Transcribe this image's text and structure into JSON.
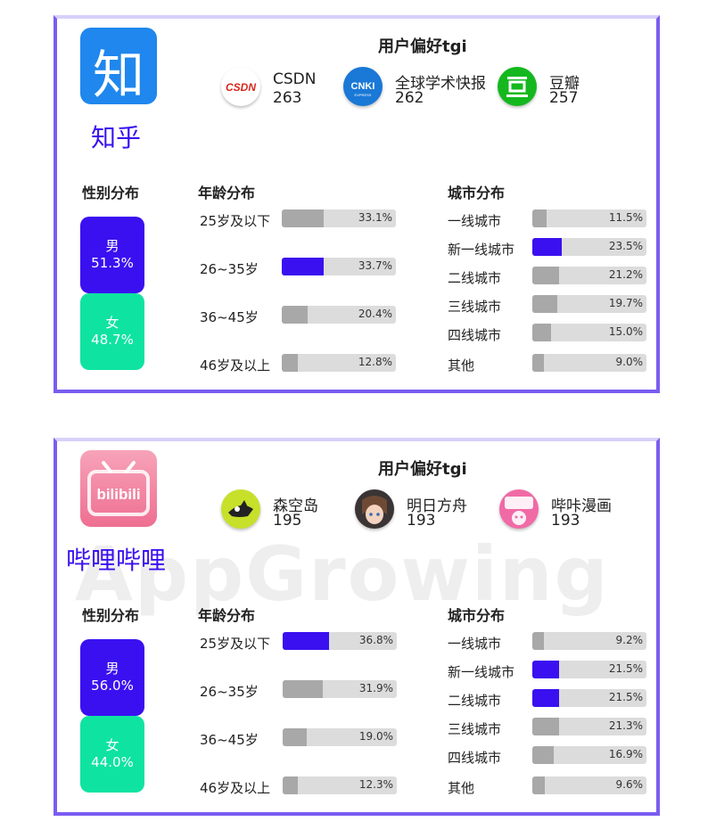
{
  "colors": {
    "accent": "#3a10f0",
    "male": "#3a10f0",
    "female": "#0fe3a1",
    "bar_bg": "#dcdcdc",
    "bar_fill": "#a8a8a8",
    "border": "#7a5cf0"
  },
  "cards": [
    {
      "app_name": "知乎",
      "logo_text": "知",
      "pref_title": "用户偏好tgi",
      "prefs": [
        {
          "name": "CSDN",
          "value": "263",
          "icon": "csdn-icon"
        },
        {
          "name": "全球学术快报",
          "value": "262",
          "icon": "cnki-icon"
        },
        {
          "name": "豆瓣",
          "value": "257",
          "icon": "douban-icon"
        }
      ],
      "gender_title": "性别分布",
      "age_title": "年龄分布",
      "city_title": "城市分布",
      "gender": {
        "male_label": "男",
        "male": "51.3%",
        "female_label": "女",
        "female": "48.7%"
      },
      "age": [
        {
          "label": "25岁及以下",
          "pct": "33.1%",
          "value": 33.1,
          "hl": false
        },
        {
          "label": "26~35岁",
          "pct": "33.7%",
          "value": 33.7,
          "hl": true
        },
        {
          "label": "36~45岁",
          "pct": "20.4%",
          "value": 20.4,
          "hl": false
        },
        {
          "label": "46岁及以上",
          "pct": "12.8%",
          "value": 12.8,
          "hl": false
        }
      ],
      "city": [
        {
          "label": "一线城市",
          "pct": "11.5%",
          "value": 11.5,
          "hl": false
        },
        {
          "label": "新一线城市",
          "pct": "23.5%",
          "value": 23.5,
          "hl": true
        },
        {
          "label": "二线城市",
          "pct": "21.2%",
          "value": 21.2,
          "hl": false
        },
        {
          "label": "三线城市",
          "pct": "19.7%",
          "value": 19.7,
          "hl": false
        },
        {
          "label": "四线城市",
          "pct": "15.0%",
          "value": 15.0,
          "hl": false
        },
        {
          "label": "其他",
          "pct": "9.0%",
          "value": 9.0,
          "hl": false
        }
      ]
    },
    {
      "app_name": "哔哩哔哩",
      "logo_text": "bilibili",
      "watermark": "AppGrowing",
      "pref_title": "用户偏好tgi",
      "prefs": [
        {
          "name": "森空岛",
          "value": "195",
          "icon": "senkongdao-icon"
        },
        {
          "name": "明日方舟",
          "value": "193",
          "icon": "arknights-icon"
        },
        {
          "name": "哔咔漫画",
          "value": "193",
          "icon": "picacomic-icon"
        }
      ],
      "gender_title": "性别分布",
      "age_title": "年龄分布",
      "city_title": "城市分布",
      "gender": {
        "male_label": "男",
        "male": "56.0%",
        "female_label": "女",
        "female": "44.0%"
      },
      "age": [
        {
          "label": "25岁及以下",
          "pct": "36.8%",
          "value": 36.8,
          "hl": true
        },
        {
          "label": "26~35岁",
          "pct": "31.9%",
          "value": 31.9,
          "hl": false
        },
        {
          "label": "36~45岁",
          "pct": "19.0%",
          "value": 19.0,
          "hl": false
        },
        {
          "label": "46岁及以上",
          "pct": "12.3%",
          "value": 12.3,
          "hl": false
        }
      ],
      "city": [
        {
          "label": "一线城市",
          "pct": "9.2%",
          "value": 9.2,
          "hl": false
        },
        {
          "label": "新一线城市",
          "pct": "21.5%",
          "value": 21.5,
          "hl": true
        },
        {
          "label": "二线城市",
          "pct": "21.5%",
          "value": 21.5,
          "hl": true
        },
        {
          "label": "三线城市",
          "pct": "21.3%",
          "value": 21.3,
          "hl": false
        },
        {
          "label": "四线城市",
          "pct": "16.9%",
          "value": 16.9,
          "hl": false
        },
        {
          "label": "其他",
          "pct": "9.6%",
          "value": 9.6,
          "hl": false
        }
      ]
    }
  ]
}
